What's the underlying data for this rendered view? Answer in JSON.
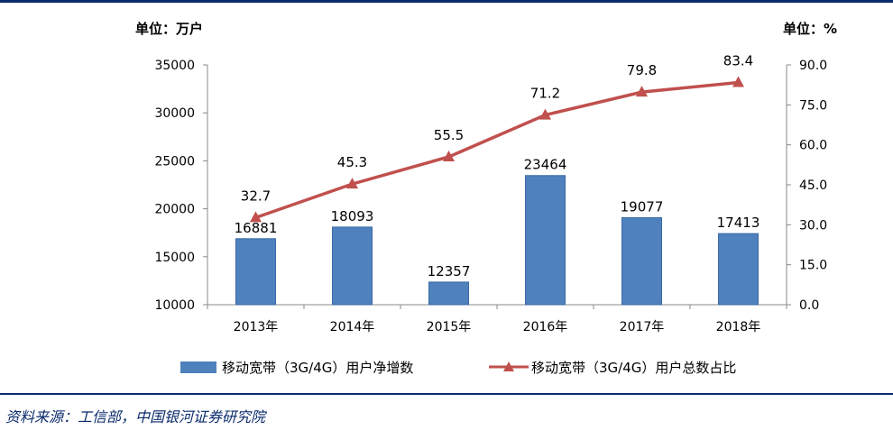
{
  "chart_data": {
    "type": "bar",
    "categories": [
      "2013年",
      "2014年",
      "2015年",
      "2016年",
      "2017年",
      "2018年"
    ],
    "left_unit": "单位：万户",
    "right_unit": "单位：%",
    "left_axis": {
      "ylim": [
        10000,
        35000
      ],
      "ticks": [
        "10000",
        "15000",
        "20000",
        "25000",
        "30000",
        "35000"
      ]
    },
    "right_axis": {
      "ylim": [
        0,
        90
      ],
      "ticks": [
        "0.0",
        "15.0",
        "30.0",
        "45.0",
        "60.0",
        "75.0",
        "90.0"
      ]
    },
    "series": [
      {
        "name": "移动宽带（3G/4G）用户净增数",
        "kind": "bar",
        "axis": "left",
        "color": "#4f81bd",
        "values": [
          16881,
          18093,
          12357,
          23464,
          19077,
          17413
        ],
        "labels": [
          "16881",
          "18093",
          "12357",
          "23464",
          "19077",
          "17413"
        ]
      },
      {
        "name": "移动宽带（3G/4G）用户总数占比",
        "kind": "line",
        "axis": "right",
        "color": "#c0504d",
        "values": [
          32.7,
          45.3,
          55.5,
          71.2,
          79.8,
          83.4
        ],
        "labels": [
          "32.7",
          "45.3",
          "55.5",
          "71.2",
          "79.8",
          "83.4"
        ]
      }
    ]
  },
  "source": "资料来源：工信部，中国银河证券研究院"
}
